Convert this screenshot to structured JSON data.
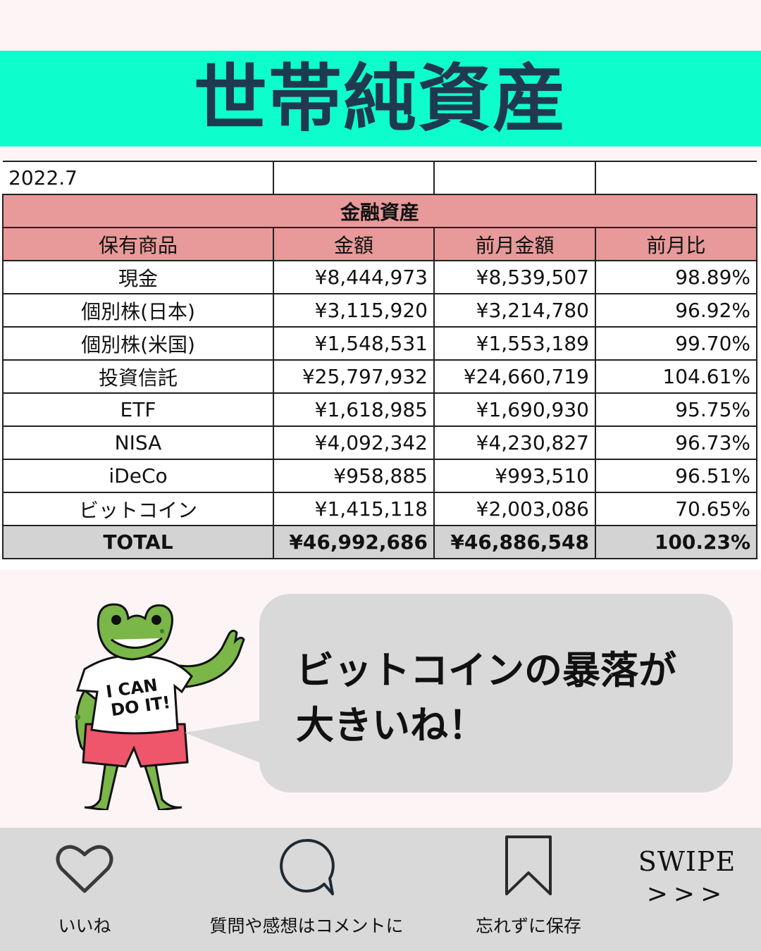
{
  "title": "世帯純資産",
  "date": "2022.7",
  "table": {
    "section": "金融資産",
    "headers": [
      "保有商品",
      "金額",
      "前月金額",
      "前月比"
    ],
    "rows": [
      [
        "現金",
        "¥8,444,973",
        "¥8,539,507",
        "98.89%"
      ],
      [
        "個別株(日本)",
        "¥3,115,920",
        "¥3,214,780",
        "96.92%"
      ],
      [
        "個別株(米国)",
        "¥1,548,531",
        "¥1,553,189",
        "99.70%"
      ],
      [
        "投資信託",
        "¥25,797,932",
        "¥24,660,719",
        "104.61%"
      ],
      [
        "ETF",
        "¥1,618,985",
        "¥1,690,930",
        "95.75%"
      ],
      [
        "NISA",
        "¥4,092,342",
        "¥4,230,827",
        "96.73%"
      ],
      [
        "iDeCo",
        "¥958,885",
        "¥993,510",
        "96.51%"
      ],
      [
        "ビットコイン",
        "¥1,415,118",
        "¥2,003,086",
        "70.65%"
      ]
    ],
    "total": [
      "TOTAL",
      "¥46,992,686",
      "¥46,886,548",
      "100.23%"
    ]
  },
  "bubble": {
    "line1": "ビットコインの暴落が",
    "line2": "大きいね！"
  },
  "mascot": {
    "shirt_text_1": "I CAN",
    "shirt_text_2": "DO IT!",
    "icon": "frog-mascot"
  },
  "footer": {
    "like_label": "いいね",
    "comment_label": "質問や感想はコメントに",
    "save_label": "忘れずに保存",
    "swipe_label": "SWIPE",
    "swipe_arrows": ">>>"
  },
  "colors": {
    "banner": "#0efdcc",
    "title": "#1f3a4f",
    "table_header": "#e89999",
    "total_row": "#d3d3d3",
    "bubble": "#d9d9d9",
    "frog": "#7ab648",
    "shorts": "#f0566b"
  }
}
